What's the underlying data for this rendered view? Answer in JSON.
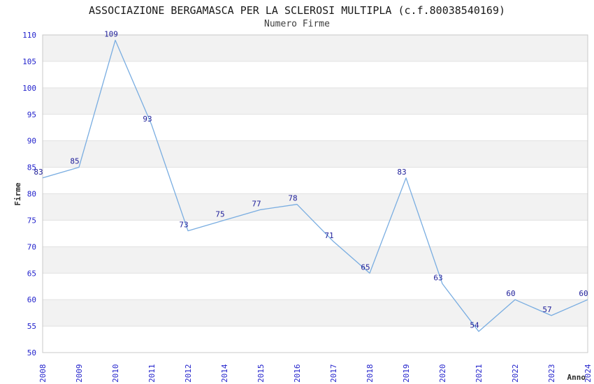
{
  "header": {
    "title": "ASSOCIAZIONE BERGAMASCA PER LA SCLEROSI MULTIPLA (c.f.80038540169)",
    "subtitle": "Numero Firme"
  },
  "chart_data": {
    "type": "line",
    "title": "ASSOCIAZIONE BERGAMASCA PER LA SCLEROSI MULTIPLA (c.f.80038540169)",
    "subtitle": "Numero Firme",
    "xlabel": "Anno",
    "ylabel": "Firme",
    "categories": [
      "2008",
      "2009",
      "2010",
      "2011",
      "2012",
      "2014",
      "2015",
      "2016",
      "2017",
      "2018",
      "2019",
      "2020",
      "2021",
      "2022",
      "2023",
      "2024"
    ],
    "values": [
      83,
      85,
      109,
      93,
      73,
      75,
      77,
      78,
      71,
      65,
      83,
      63,
      54,
      60,
      57,
      60
    ],
    "ylim": [
      50,
      110
    ],
    "ytick_step": 5,
    "grid": "horizontal-bands",
    "legend": "none",
    "colors": {
      "line": "#79ade1",
      "data_label": "#20209a",
      "tick_label": "#2323cc",
      "band_fill": "#f2f2f2",
      "grid_line": "#e1e1e1",
      "plot_border": "#c8c8c8",
      "title": "#1a1a1a",
      "subtitle": "#3d3d3d",
      "axis_title": "#2b2b2b",
      "background": "#ffffff"
    }
  }
}
